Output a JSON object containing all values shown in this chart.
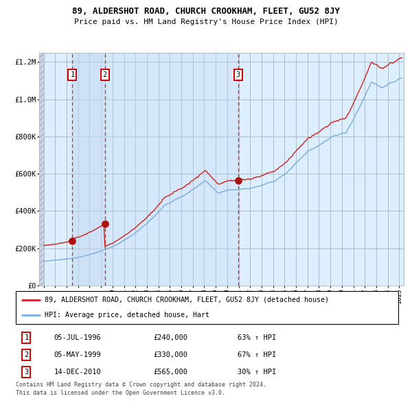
{
  "title": "89, ALDERSHOT ROAD, CHURCH CROOKHAM, FLEET, GU52 8JY",
  "subtitle": "Price paid vs. HM Land Registry's House Price Index (HPI)",
  "legend_line1": "89, ALDERSHOT ROAD, CHURCH CROOKHAM, FLEET, GU52 8JY (detached house)",
  "legend_line2": "HPI: Average price, detached house, Hart",
  "transactions": [
    {
      "num": 1,
      "date": "05-JUL-1996",
      "price": 240000,
      "pct": "63%",
      "year": 1996.5
    },
    {
      "num": 2,
      "date": "05-MAY-1999",
      "price": 330000,
      "pct": "67%",
      "year": 1999.33
    },
    {
      "num": 3,
      "date": "14-DEC-2010",
      "price": 565000,
      "pct": "30%",
      "year": 2010.95
    }
  ],
  "footnote1": "Contains HM Land Registry data © Crown copyright and database right 2024.",
  "footnote2": "This data is licensed under the Open Government Licence v3.0.",
  "hpi_color": "#7aabdc",
  "price_color": "#cc2222",
  "dot_color": "#aa1111",
  "bg_color": "#ddeeff",
  "bg_light": "#e8f0fa",
  "hatch_bg": "#d0d8e8",
  "grid_color": "#aabbcc",
  "vline_color": "#cc0000",
  "ylim_max": 1250000,
  "ylim_min": 0,
  "xlim_min": 1993.6,
  "xlim_max": 2025.4
}
